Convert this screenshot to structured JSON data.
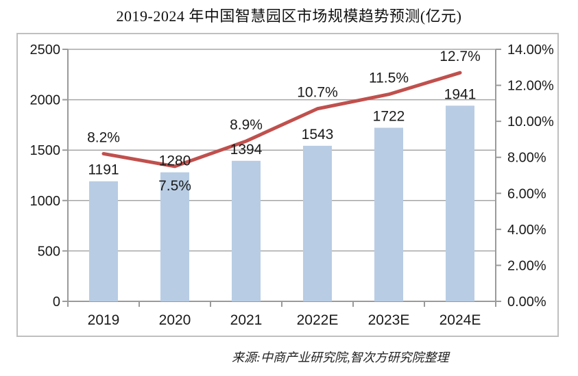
{
  "chart_data": {
    "type": "combo-bar-line",
    "title": "2019-2024 年中国智慧园区市场规模趋势预测(亿元)",
    "source": "来源:中商产业研究院,智次方研究院整理",
    "categories": [
      "2019",
      "2020",
      "2021",
      "2022E",
      "2023E",
      "2024E"
    ],
    "series": [
      {
        "type": "bar",
        "axis": "left",
        "values": [
          1191,
          1280,
          1394,
          1543,
          1722,
          1941
        ],
        "labels": [
          "1191",
          "1280",
          "1394",
          "1543",
          "1722",
          "1941"
        ],
        "color": "#b8cce4"
      },
      {
        "type": "line",
        "axis": "right",
        "values": [
          8.2,
          7.5,
          8.9,
          10.7,
          11.5,
          12.7
        ],
        "labels": [
          "8.2%",
          "7.5%",
          "8.9%",
          "10.7%",
          "11.5%",
          "12.7%"
        ],
        "label_position": [
          "above",
          "below",
          "above",
          "above",
          "above",
          "above"
        ],
        "color": "#c0504d"
      }
    ],
    "left_axis": {
      "min": 0,
      "max": 2500,
      "ticks": [
        "0",
        "500",
        "1000",
        "1500",
        "2000",
        "2500"
      ]
    },
    "right_axis": {
      "min": 0,
      "max": 14,
      "ticks": [
        "0.00%",
        "2.00%",
        "4.00%",
        "6.00%",
        "8.00%",
        "10.00%",
        "12.00%",
        "14.00%"
      ]
    },
    "grid": true,
    "legend": "none",
    "colors": {
      "bar": "#b8cce4",
      "line": "#c0504d",
      "grid": "#a6a6a6",
      "axis": "#9a9a9a",
      "text": "#1a1a1a"
    }
  }
}
